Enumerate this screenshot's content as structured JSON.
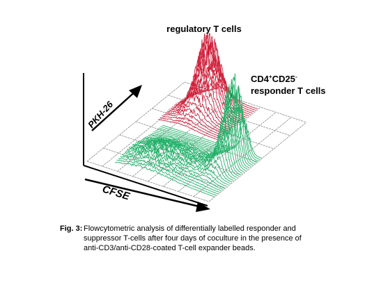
{
  "figure": {
    "title": "regulatory T cells",
    "responder_label": {
      "marker_1": "CD4",
      "sup_1": "+",
      "marker_2": "CD25",
      "sup_2": "-",
      "line_2": "responder T cells"
    },
    "y_axis_label": "PKH-26",
    "x_axis_label": "CFSE",
    "caption": {
      "number": "Fig. 3:",
      "lines": [
        "Flowcytometric analysis of differentially labelled responder and",
        "suppressor T-cells after four days of coculture in the presence of",
        "anti-CD3/anti-CD28-coated T-cell expander beads."
      ]
    }
  }
}
